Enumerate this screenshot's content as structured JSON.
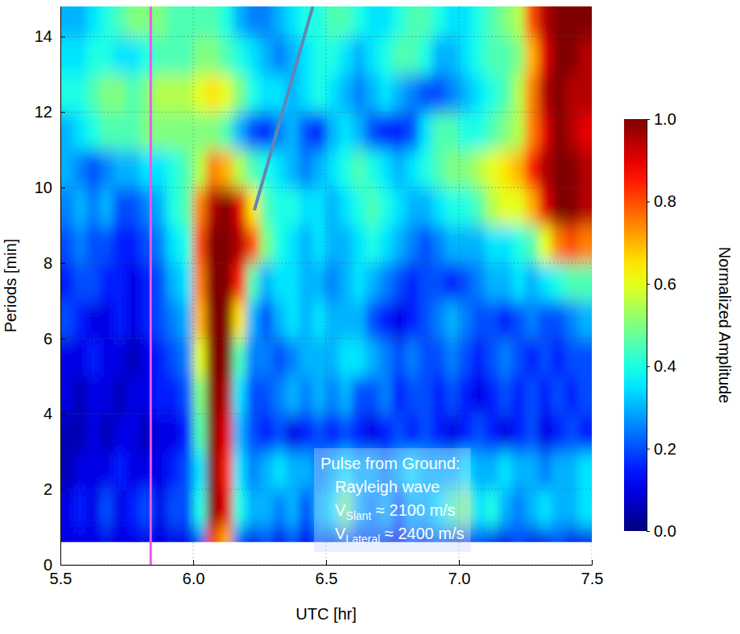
{
  "chart_data": {
    "type": "heatmap",
    "x_label": "UTC [hr]",
    "y_label": "Periods [min]",
    "xlim": [
      5.5,
      7.5
    ],
    "ylim": [
      0,
      14.8
    ],
    "xticks": [
      5.5,
      {
        "value": 6,
        "label": "6.0"
      },
      6.5,
      {
        "value": 7,
        "label": "7.0"
      },
      7.5
    ],
    "yticks": [
      0,
      2,
      4,
      6,
      8,
      10,
      12,
      14
    ],
    "grid": true,
    "x_edges": [
      5.5,
      5.55,
      5.6,
      5.65,
      5.7,
      5.75,
      5.8,
      5.85,
      5.9,
      5.95,
      6.0,
      6.05,
      6.1,
      6.15,
      6.2,
      6.25,
      6.3,
      6.35,
      6.4,
      6.45,
      6.5,
      6.55,
      6.6,
      6.65,
      6.7,
      6.75,
      6.8,
      6.85,
      6.9,
      6.95,
      7.0,
      7.05,
      7.1,
      7.15,
      7.2,
      7.25,
      7.3,
      7.35,
      7.4,
      7.45,
      7.5
    ],
    "y_edges": [
      0.6,
      1,
      2,
      3,
      4,
      5,
      6,
      7,
      8,
      9,
      10,
      11,
      12,
      13,
      14,
      15
    ],
    "z": [
      [
        0.1,
        0.1,
        0.1,
        0.1,
        0.1,
        0.1,
        0.1,
        0.1,
        0.1,
        0.1,
        0.2,
        0.8,
        0.7,
        0.2,
        0.1,
        0.2,
        0.1,
        0.2,
        0.1,
        0.2,
        0.1,
        0.2,
        0.1,
        0.2,
        0.1,
        0.1,
        0.2,
        0.1,
        0.2,
        0.1,
        0.1,
        0.2,
        0.1,
        0.1,
        0.2,
        0.1,
        0.1,
        0.2,
        0.1,
        0.1
      ],
      [
        0.1,
        0.15,
        0.1,
        0.2,
        0.1,
        0.15,
        0.2,
        0.1,
        0.2,
        0.2,
        0.4,
        1.0,
        0.9,
        0.4,
        0.3,
        0.3,
        0.25,
        0.3,
        0.2,
        0.3,
        0.35,
        0.5,
        0.3,
        0.25,
        0.3,
        0.2,
        0.3,
        0.3,
        0.35,
        0.45,
        0.5,
        0.35,
        0.4,
        0.3,
        0.25,
        0.3,
        0.35,
        0.3,
        0.3,
        0.35
      ],
      [
        0.05,
        0.1,
        0.1,
        0.1,
        0.15,
        0.1,
        0.1,
        0.1,
        0.15,
        0.2,
        0.35,
        1.0,
        0.85,
        0.35,
        0.25,
        0.3,
        0.35,
        0.3,
        0.3,
        0.25,
        0.3,
        0.35,
        0.3,
        0.3,
        0.25,
        0.3,
        0.35,
        0.3,
        0.3,
        0.3,
        0.35,
        0.3,
        0.3,
        0.35,
        0.3,
        0.3,
        0.25,
        0.3,
        0.3,
        0.35
      ],
      [
        0.05,
        0.05,
        0.1,
        0.05,
        0.1,
        0.1,
        0.05,
        0.1,
        0.1,
        0.15,
        0.45,
        1.0,
        0.9,
        0.3,
        0.2,
        0.15,
        0.2,
        0.1,
        0.15,
        0.2,
        0.15,
        0.2,
        0.15,
        0.1,
        0.15,
        0.2,
        0.15,
        0.2,
        0.15,
        0.1,
        0.15,
        0.2,
        0.15,
        0.1,
        0.15,
        0.2,
        0.1,
        0.15,
        0.2,
        0.15
      ],
      [
        0.1,
        0.05,
        0.1,
        0.1,
        0.05,
        0.1,
        0.1,
        0.15,
        0.15,
        0.2,
        0.5,
        1.0,
        0.95,
        0.35,
        0.2,
        0.2,
        0.25,
        0.3,
        0.25,
        0.3,
        0.25,
        0.3,
        0.2,
        0.2,
        0.25,
        0.15,
        0.2,
        0.2,
        0.15,
        0.2,
        0.15,
        0.1,
        0.15,
        0.2,
        0.15,
        0.2,
        0.15,
        0.2,
        0.15,
        0.2
      ],
      [
        0.1,
        0.1,
        0.15,
        0.1,
        0.1,
        0.05,
        0.1,
        0.15,
        0.2,
        0.25,
        0.6,
        1.0,
        1.0,
        0.45,
        0.25,
        0.25,
        0.2,
        0.25,
        0.3,
        0.3,
        0.3,
        0.35,
        0.35,
        0.3,
        0.25,
        0.2,
        0.25,
        0.2,
        0.2,
        0.25,
        0.2,
        0.15,
        0.2,
        0.25,
        0.2,
        0.15,
        0.2,
        0.15,
        0.2,
        0.2
      ],
      [
        0.2,
        0.15,
        0.1,
        0.1,
        0.15,
        0.1,
        0.15,
        0.2,
        0.25,
        0.3,
        0.7,
        1.0,
        1.0,
        0.65,
        0.3,
        0.2,
        0.3,
        0.35,
        0.3,
        0.35,
        0.3,
        0.3,
        0.3,
        0.2,
        0.15,
        0.1,
        0.15,
        0.2,
        0.25,
        0.3,
        0.25,
        0.2,
        0.2,
        0.15,
        0.2,
        0.25,
        0.2,
        0.2,
        0.25,
        0.3
      ],
      [
        0.15,
        0.2,
        0.2,
        0.15,
        0.15,
        0.1,
        0.15,
        0.2,
        0.3,
        0.35,
        0.75,
        1.0,
        1.0,
        0.85,
        0.45,
        0.3,
        0.35,
        0.35,
        0.3,
        0.3,
        0.25,
        0.3,
        0.35,
        0.3,
        0.25,
        0.2,
        0.15,
        0.2,
        0.2,
        0.15,
        0.2,
        0.25,
        0.3,
        0.3,
        0.35,
        0.3,
        0.35,
        0.4,
        0.45,
        0.45
      ],
      [
        0.2,
        0.25,
        0.2,
        0.2,
        0.15,
        0.15,
        0.2,
        0.25,
        0.35,
        0.4,
        0.8,
        1.0,
        1.0,
        0.95,
        0.8,
        0.5,
        0.4,
        0.35,
        0.3,
        0.35,
        0.3,
        0.3,
        0.35,
        0.4,
        0.35,
        0.3,
        0.25,
        0.2,
        0.25,
        0.3,
        0.3,
        0.3,
        0.35,
        0.35,
        0.4,
        0.45,
        0.6,
        0.75,
        0.8,
        0.75
      ],
      [
        0.25,
        0.3,
        0.25,
        0.3,
        0.2,
        0.2,
        0.25,
        0.3,
        0.4,
        0.45,
        0.75,
        0.95,
        1.0,
        0.9,
        0.65,
        0.45,
        0.4,
        0.4,
        0.35,
        0.35,
        0.3,
        0.35,
        0.4,
        0.45,
        0.4,
        0.35,
        0.3,
        0.3,
        0.35,
        0.4,
        0.4,
        0.45,
        0.55,
        0.6,
        0.6,
        0.7,
        0.9,
        1.0,
        1.0,
        0.95
      ],
      [
        0.3,
        0.25,
        0.2,
        0.25,
        0.3,
        0.3,
        0.35,
        0.35,
        0.4,
        0.45,
        0.55,
        0.75,
        0.7,
        0.55,
        0.45,
        0.4,
        0.35,
        0.3,
        0.25,
        0.3,
        0.35,
        0.4,
        0.45,
        0.4,
        0.35,
        0.3,
        0.35,
        0.4,
        0.45,
        0.5,
        0.5,
        0.55,
        0.6,
        0.65,
        0.7,
        0.85,
        0.95,
        1.0,
        1.0,
        0.95
      ],
      [
        0.3,
        0.35,
        0.4,
        0.45,
        0.45,
        0.45,
        0.5,
        0.5,
        0.5,
        0.5,
        0.5,
        0.5,
        0.45,
        0.3,
        0.2,
        0.15,
        0.25,
        0.3,
        0.2,
        0.15,
        0.3,
        0.35,
        0.3,
        0.2,
        0.15,
        0.15,
        0.2,
        0.35,
        0.45,
        0.45,
        0.4,
        0.4,
        0.45,
        0.5,
        0.55,
        0.75,
        0.9,
        1.0,
        0.95,
        0.9
      ],
      [
        0.4,
        0.4,
        0.45,
        0.5,
        0.5,
        0.45,
        0.5,
        0.55,
        0.55,
        0.55,
        0.6,
        0.65,
        0.6,
        0.5,
        0.4,
        0.35,
        0.35,
        0.3,
        0.35,
        0.4,
        0.35,
        0.3,
        0.25,
        0.3,
        0.35,
        0.3,
        0.25,
        0.2,
        0.2,
        0.25,
        0.3,
        0.35,
        0.4,
        0.45,
        0.55,
        0.75,
        0.95,
        1.0,
        0.95,
        0.95
      ],
      [
        0.35,
        0.35,
        0.4,
        0.4,
        0.35,
        0.35,
        0.4,
        0.45,
        0.45,
        0.45,
        0.5,
        0.5,
        0.45,
        0.4,
        0.35,
        0.3,
        0.25,
        0.3,
        0.35,
        0.4,
        0.4,
        0.35,
        0.3,
        0.35,
        0.4,
        0.45,
        0.45,
        0.4,
        0.3,
        0.3,
        0.35,
        0.4,
        0.45,
        0.45,
        0.5,
        0.7,
        0.9,
        1.0,
        1.0,
        0.95
      ],
      [
        0.3,
        0.3,
        0.35,
        0.4,
        0.45,
        0.5,
        0.5,
        0.5,
        0.45,
        0.45,
        0.45,
        0.45,
        0.4,
        0.3,
        0.25,
        0.25,
        0.3,
        0.35,
        0.4,
        0.4,
        0.45,
        0.45,
        0.4,
        0.35,
        0.35,
        0.4,
        0.45,
        0.45,
        0.4,
        0.35,
        0.35,
        0.4,
        0.45,
        0.5,
        0.55,
        0.8,
        0.95,
        1.0,
        1.0,
        1.0
      ]
    ],
    "colorbar": {
      "label": "Normalized Amplitude",
      "color": "jet",
      "range": [
        0,
        1
      ],
      "ticks": [
        {
          "value": 0,
          "label": "0.0"
        },
        0.2,
        0.4,
        0.6,
        0.8,
        {
          "value": 1,
          "label": "1.0"
        }
      ]
    },
    "vertical_line": {
      "x": 5.84,
      "color": "#ee55ee"
    },
    "pointer_line": {
      "x": [
        6.23,
        6.45
      ],
      "y": [
        9.4,
        14.8
      ],
      "color": "#6286b6"
    },
    "annotation": [
      "Pulse from Ground:",
      "Rayleigh wave",
      {
        "main": "V",
        "sub": "Slant",
        "text": " ≈ 2100 m/s"
      },
      {
        "main": "V",
        "sub": "Lateral",
        "text": " ≈ 2400 m/s"
      }
    ]
  }
}
